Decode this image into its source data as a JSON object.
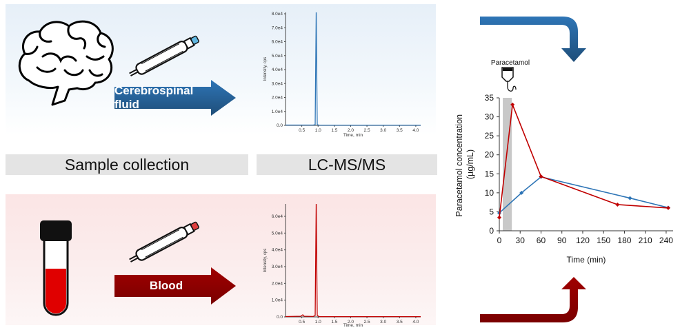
{
  "labels": {
    "sample_collection": "Sample collection",
    "lcmsms": "LC-MS/MS",
    "csf_arrow": "Cerebrospinal fluid",
    "blood_arrow": "Blood",
    "paracetamol_icon": "Paracetamol"
  },
  "colors": {
    "csf": "#2e75b6",
    "blood": "#c00000",
    "csf_dark": "#1f4e79",
    "blood_dark": "#8b0000"
  },
  "chrom_csf": {
    "ylabel": "Intensity, cps",
    "xlabel": "Time, min",
    "yticks": [
      "0.0",
      "1.0e4",
      "2.0e4",
      "3.0e4",
      "4.0e4",
      "5.0e4",
      "6.0e4",
      "7.0e4",
      "8.0e4"
    ],
    "xticks": [
      "0.5",
      "1.0",
      "1.5",
      "2.0",
      "2.5",
      "3.0",
      "3.5",
      "4.0"
    ]
  },
  "chrom_blood": {
    "ylabel": "Intensity, cps",
    "xlabel": "Time, min",
    "yticks": [
      "0.0",
      "1.0e4",
      "2.0e4",
      "3.0e4",
      "4.0e4",
      "5.0e4",
      "6.0e4"
    ],
    "xticks": [
      "0.5",
      "1.0",
      "1.5",
      "2.0",
      "2.5",
      "3.0",
      "3.5",
      "4.0"
    ]
  },
  "chart_data": {
    "type": "line",
    "xlabel": "Time (min)",
    "ylabel": "Paracetamol concentration (µg/mL)",
    "xlim": [
      0,
      250
    ],
    "ylim": [
      0,
      35
    ],
    "xticks": [
      0,
      30,
      60,
      90,
      120,
      150,
      180,
      210,
      240
    ],
    "yticks": [
      0,
      5,
      10,
      15,
      20,
      25,
      30,
      35
    ],
    "infusion_window": [
      5,
      18
    ],
    "series": [
      {
        "color": "#2e75b6",
        "x": [
          0,
          32,
          60,
          188,
          243
        ],
        "y": [
          4.7,
          10,
          14.2,
          8.6,
          6.1
        ]
      },
      {
        "color": "#c00000",
        "x": [
          0,
          19,
          60,
          170,
          243
        ],
        "y": [
          3.5,
          33.2,
          14.3,
          6.9,
          6.0
        ]
      }
    ]
  }
}
